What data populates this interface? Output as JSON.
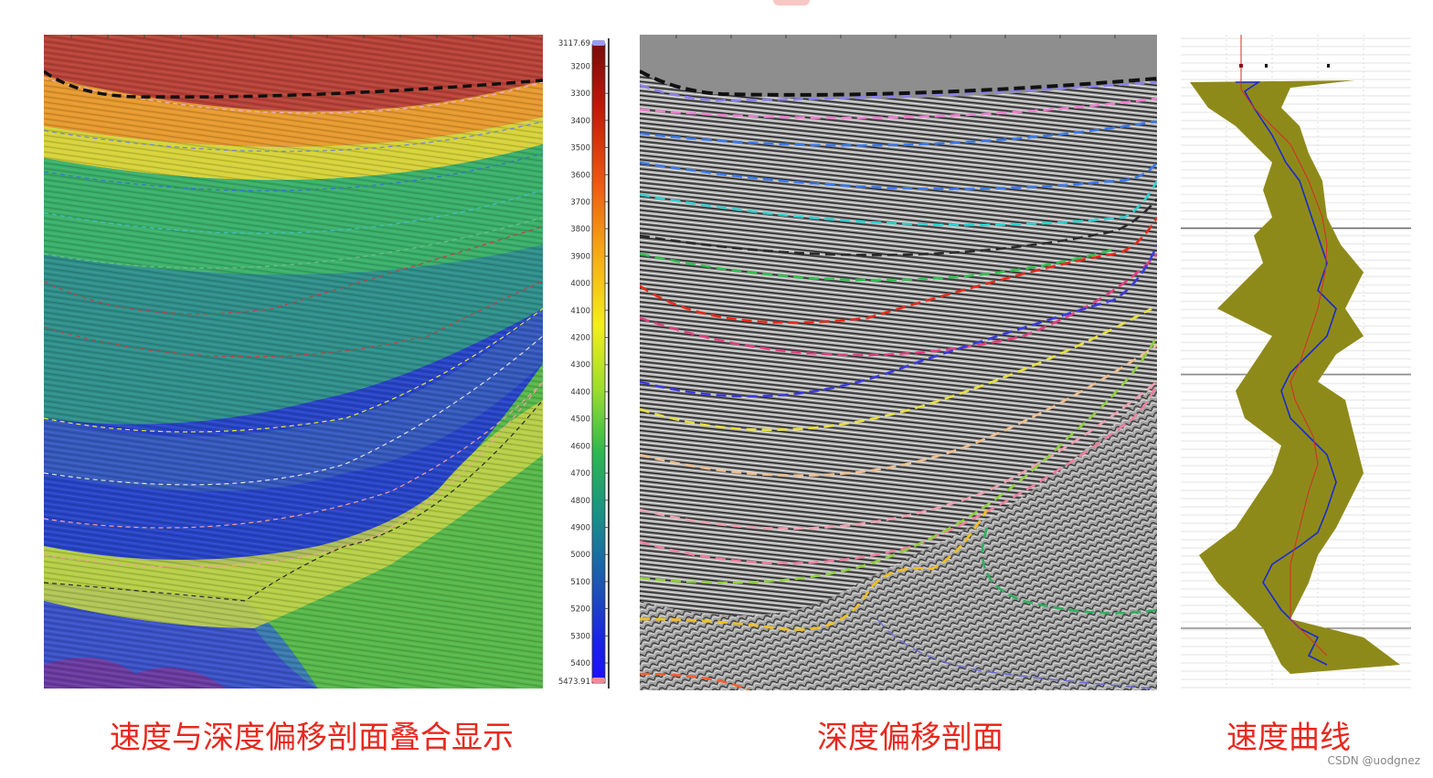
{
  "captions": {
    "overlay": "速度与深度偏移剖面叠合显示",
    "depth_section": "深度偏移剖面",
    "velocity_curve": "速度曲线"
  },
  "colorbar": {
    "min_label": "3117.69",
    "max_label": "5473.91",
    "ticks": [
      "3200",
      "3300",
      "3400",
      "3500",
      "3600",
      "3700",
      "3800",
      "3900",
      "4000",
      "4100",
      "4200",
      "4300",
      "4400",
      "4500",
      "4600",
      "4700",
      "4800",
      "4900",
      "5000",
      "5100",
      "5200",
      "5300",
      "5400"
    ],
    "colors": [
      "#8b0a0a",
      "#c21a0a",
      "#e8470c",
      "#f28a12",
      "#f7c51a",
      "#f4ee1c",
      "#b6e22a",
      "#5ccc3a",
      "#1ea86a",
      "#148e8c",
      "#1e5fa8",
      "#1a2fd8",
      "#1810f0"
    ]
  },
  "watermark": "CSDN @uodgnez"
}
